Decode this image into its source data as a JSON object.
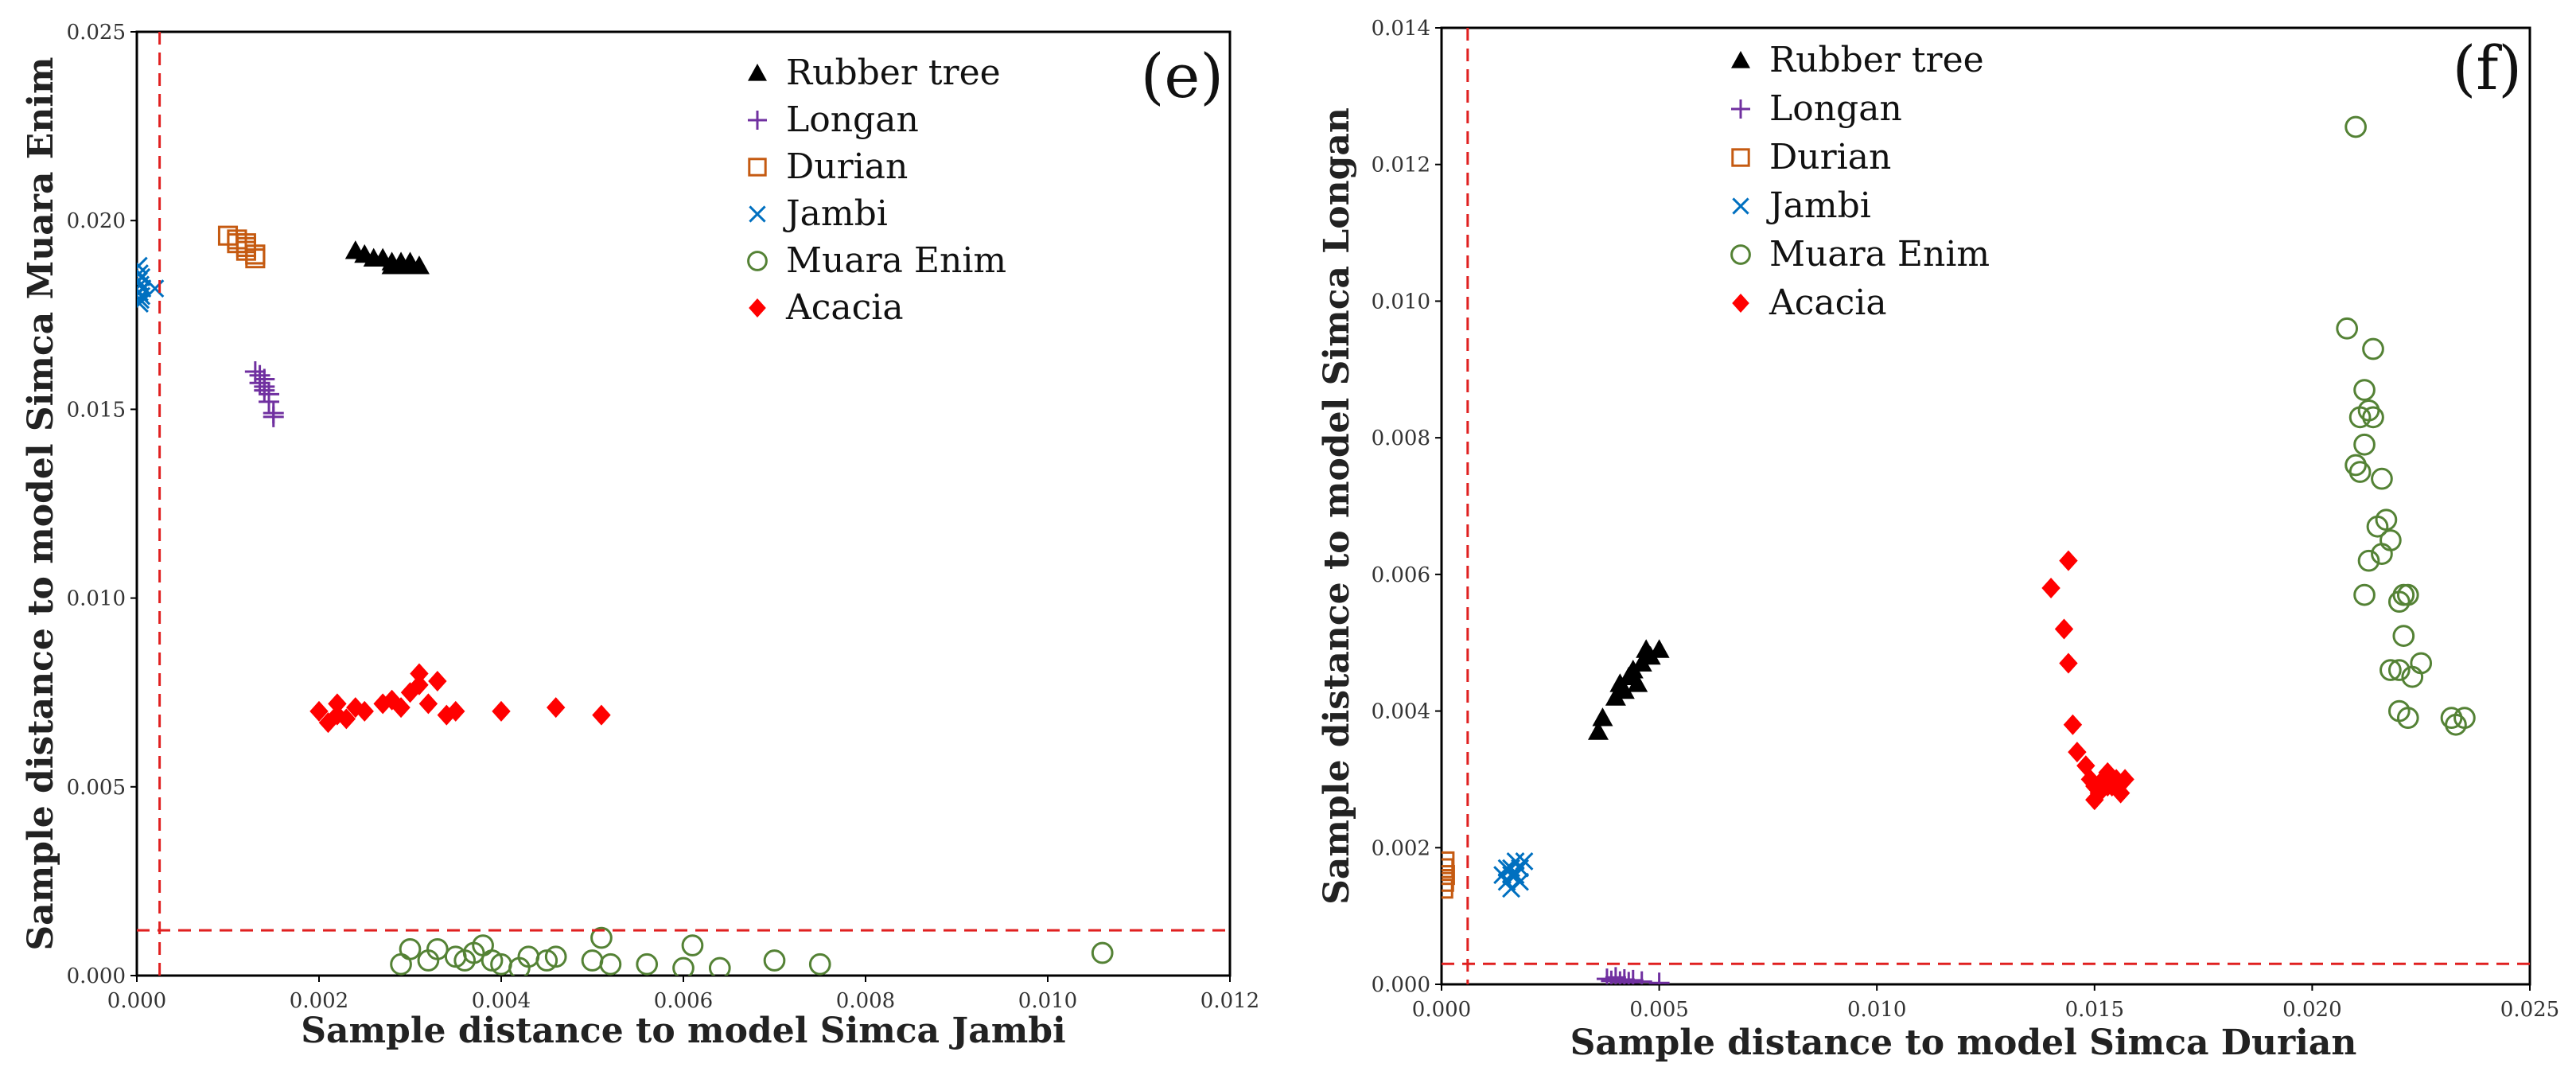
{
  "chart_data": [
    {
      "type": "scatter",
      "panel_label": "(e)",
      "xlabel": "Sample distance to model Simca Jambi",
      "ylabel": "Sample distance to model Simca Muara Enim",
      "xlim": [
        0,
        0.012
      ],
      "ylim": [
        0,
        0.025
      ],
      "xticks": [
        "0.000",
        "0.002",
        "0.004",
        "0.006",
        "0.008",
        "0.010",
        "0.012"
      ],
      "yticks": [
        "0.000",
        "0.005",
        "0.010",
        "0.015",
        "0.020",
        "0.025"
      ],
      "threshold_x": 0.00025,
      "threshold_y": 0.0012,
      "legend_position": "top-right",
      "series": [
        {
          "name": "Rubber tree",
          "marker": "triangle",
          "color": "#000000",
          "x": [
            0.0024,
            0.0025,
            0.0026,
            0.0027,
            0.0028,
            0.0028,
            0.0029,
            0.0029,
            0.003,
            0.003,
            0.0031
          ],
          "y": [
            0.0192,
            0.0191,
            0.019,
            0.019,
            0.0189,
            0.0188,
            0.0189,
            0.0188,
            0.0189,
            0.0188,
            0.0188
          ]
        },
        {
          "name": "Longan",
          "marker": "plus",
          "color": "#7030a0",
          "x": [
            0.0013,
            0.00135,
            0.0014,
            0.00135,
            0.0014,
            0.0014,
            0.00145,
            0.00145,
            0.0015,
            0.0015
          ],
          "y": [
            0.016,
            0.0159,
            0.0158,
            0.0157,
            0.0156,
            0.0155,
            0.0154,
            0.0152,
            0.0149,
            0.0148
          ]
        },
        {
          "name": "Durian",
          "marker": "square",
          "color": "#c55a11",
          "x": [
            0.001,
            0.0011,
            0.0011,
            0.0012,
            0.0012,
            0.0012,
            0.0013,
            0.0013,
            0.0013
          ],
          "y": [
            0.0196,
            0.0195,
            0.0194,
            0.0194,
            0.0193,
            0.0192,
            0.0191,
            0.019,
            0.0191
          ]
        },
        {
          "name": "Jambi",
          "marker": "x",
          "color": "#0070c0",
          "x": [
            2e-05,
            3e-05,
            5e-05,
            2e-05,
            4e-05,
            6e-05,
            3e-05,
            5e-05,
            4e-05,
            3e-05,
            0.0002,
            1e-05
          ],
          "y": [
            0.0188,
            0.0186,
            0.0185,
            0.0184,
            0.0183,
            0.0182,
            0.0181,
            0.018,
            0.0179,
            0.0178,
            0.0182,
            0.0184
          ]
        },
        {
          "name": "Muara Enim",
          "marker": "circle",
          "color": "#548235",
          "x": [
            0.0029,
            0.003,
            0.0032,
            0.0033,
            0.0035,
            0.0036,
            0.0037,
            0.0038,
            0.0039,
            0.004,
            0.0042,
            0.0043,
            0.0045,
            0.0046,
            0.005,
            0.0051,
            0.0052,
            0.0056,
            0.006,
            0.0061,
            0.0064,
            0.007,
            0.0075,
            0.0106
          ],
          "y": [
            0.0003,
            0.0007,
            0.0004,
            0.0007,
            0.0005,
            0.0004,
            0.0006,
            0.0008,
            0.0004,
            0.0003,
            0.0002,
            0.0005,
            0.0004,
            0.0005,
            0.0004,
            0.001,
            0.0003,
            0.0003,
            0.0002,
            0.0008,
            0.0002,
            0.0004,
            0.0003,
            0.0006
          ]
        },
        {
          "name": "Acacia",
          "marker": "diamond",
          "color": "#ff0000",
          "x": [
            0.002,
            0.0021,
            0.0022,
            0.0022,
            0.0023,
            0.0024,
            0.0025,
            0.0027,
            0.0028,
            0.0029,
            0.003,
            0.0031,
            0.0031,
            0.0032,
            0.0033,
            0.0034,
            0.0035,
            0.004,
            0.0046,
            0.0051
          ],
          "y": [
            0.007,
            0.0067,
            0.0069,
            0.0072,
            0.0068,
            0.0071,
            0.007,
            0.0072,
            0.0073,
            0.0071,
            0.0075,
            0.008,
            0.0077,
            0.0072,
            0.0078,
            0.0069,
            0.007,
            0.007,
            0.0071,
            0.0069
          ]
        }
      ]
    },
    {
      "type": "scatter",
      "panel_label": "(f)",
      "xlabel": "Sample distance to model Simca Durian",
      "ylabel": "Sample distance to model Simca Longan",
      "xlim": [
        0,
        0.025
      ],
      "ylim": [
        0,
        0.014
      ],
      "xticks": [
        "0.000",
        "0.005",
        "0.010",
        "0.015",
        "0.020",
        "0.025"
      ],
      "yticks": [
        "0.000",
        "0.002",
        "0.004",
        "0.006",
        "0.008",
        "0.010",
        "0.012",
        "0.014"
      ],
      "threshold_x": 0.0006,
      "threshold_y": 0.0003,
      "legend_position": "top-center",
      "series": [
        {
          "name": "Rubber tree",
          "marker": "triangle",
          "color": "#000000",
          "x": [
            0.0036,
            0.0037,
            0.004,
            0.0041,
            0.0042,
            0.0043,
            0.0044,
            0.0045,
            0.0046,
            0.0047,
            0.0048,
            0.005
          ],
          "y": [
            0.0037,
            0.0039,
            0.0042,
            0.0044,
            0.0043,
            0.0045,
            0.0046,
            0.0044,
            0.0047,
            0.0049,
            0.0048,
            0.0049
          ]
        },
        {
          "name": "Longan",
          "marker": "plus",
          "color": "#7030a0",
          "x": [
            0.0038,
            0.0039,
            0.004,
            0.0041,
            0.0042,
            0.0043,
            0.0044,
            0.0046,
            0.005
          ],
          "y": [
            8e-05,
            5e-05,
            0.0001,
            4e-05,
            7e-05,
            3e-05,
            6e-05,
            4e-05,
            2e-05
          ]
        },
        {
          "name": "Durian",
          "marker": "square",
          "color": "#c55a11",
          "x": [
            5e-05,
            8e-05,
            6e-05,
            4e-05,
            7e-05
          ],
          "y": [
            0.0017,
            0.0016,
            0.0015,
            0.0014,
            0.0018
          ]
        },
        {
          "name": "Jambi",
          "marker": "x",
          "color": "#0070c0",
          "x": [
            0.0014,
            0.0015,
            0.0016,
            0.0016,
            0.0017,
            0.0017,
            0.0018,
            0.0018,
            0.0019,
            0.0015,
            0.0016
          ],
          "y": [
            0.0016,
            0.0015,
            0.0017,
            0.0014,
            0.0016,
            0.0018,
            0.0017,
            0.0015,
            0.0018,
            0.0017,
            0.0016
          ]
        },
        {
          "name": "Muara Enim",
          "marker": "circle",
          "color": "#548235",
          "x": [
            0.021,
            0.0208,
            0.0214,
            0.0212,
            0.0213,
            0.0211,
            0.0214,
            0.0212,
            0.021,
            0.0211,
            0.0216,
            0.0217,
            0.0215,
            0.0218,
            0.0216,
            0.0213,
            0.0212,
            0.0221,
            0.0222,
            0.022,
            0.0221,
            0.022,
            0.0218,
            0.0223,
            0.0225,
            0.022,
            0.0222,
            0.0232,
            0.0235,
            0.0233
          ],
          "y": [
            0.01255,
            0.0096,
            0.0093,
            0.0087,
            0.0084,
            0.0083,
            0.0083,
            0.0079,
            0.0076,
            0.0075,
            0.0074,
            0.0068,
            0.0067,
            0.0065,
            0.0063,
            0.0062,
            0.0057,
            0.0057,
            0.0057,
            0.0056,
            0.0051,
            0.0046,
            0.0046,
            0.0045,
            0.0047,
            0.004,
            0.0039,
            0.0039,
            0.0039,
            0.0038
          ]
        },
        {
          "name": "Acacia",
          "marker": "diamond",
          "color": "#ff0000",
          "x": [
            0.014,
            0.0144,
            0.0143,
            0.0144,
            0.0145,
            0.0146,
            0.0148,
            0.0149,
            0.015,
            0.0151,
            0.0152,
            0.0153,
            0.0154,
            0.0155,
            0.0156,
            0.015,
            0.0153,
            0.0157
          ],
          "y": [
            0.0058,
            0.0062,
            0.0052,
            0.0047,
            0.0038,
            0.0034,
            0.0032,
            0.003,
            0.0029,
            0.0028,
            0.003,
            0.0031,
            0.0029,
            0.003,
            0.0028,
            0.0027,
            0.0029,
            0.003
          ]
        }
      ]
    }
  ]
}
